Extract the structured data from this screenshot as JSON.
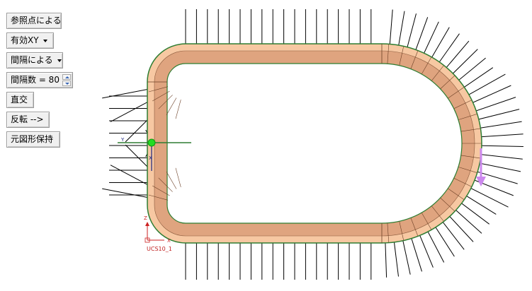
{
  "toolbar": {
    "reference_point": "参照点による",
    "valid_xy": "有効XY",
    "by_interval": "間隔による",
    "interval_count": "間隔数 = 80",
    "orthogonal": "直交",
    "flip": "反転 -->",
    "keep_original": "元図形保持"
  },
  "viewport": {
    "ucs_label": "UCS10_1",
    "axis_y": "Y",
    "axis_x": "X",
    "axis_z": "Z",
    "colors": {
      "band_outer": "#f7c8a2",
      "band_inner": "#dfa47f",
      "outline_green": "#2e7d32",
      "ray": "#000000",
      "point_green": "#22dd22",
      "arrow_violet": "#cc88ee",
      "ucs_red": "#cc2222"
    }
  }
}
